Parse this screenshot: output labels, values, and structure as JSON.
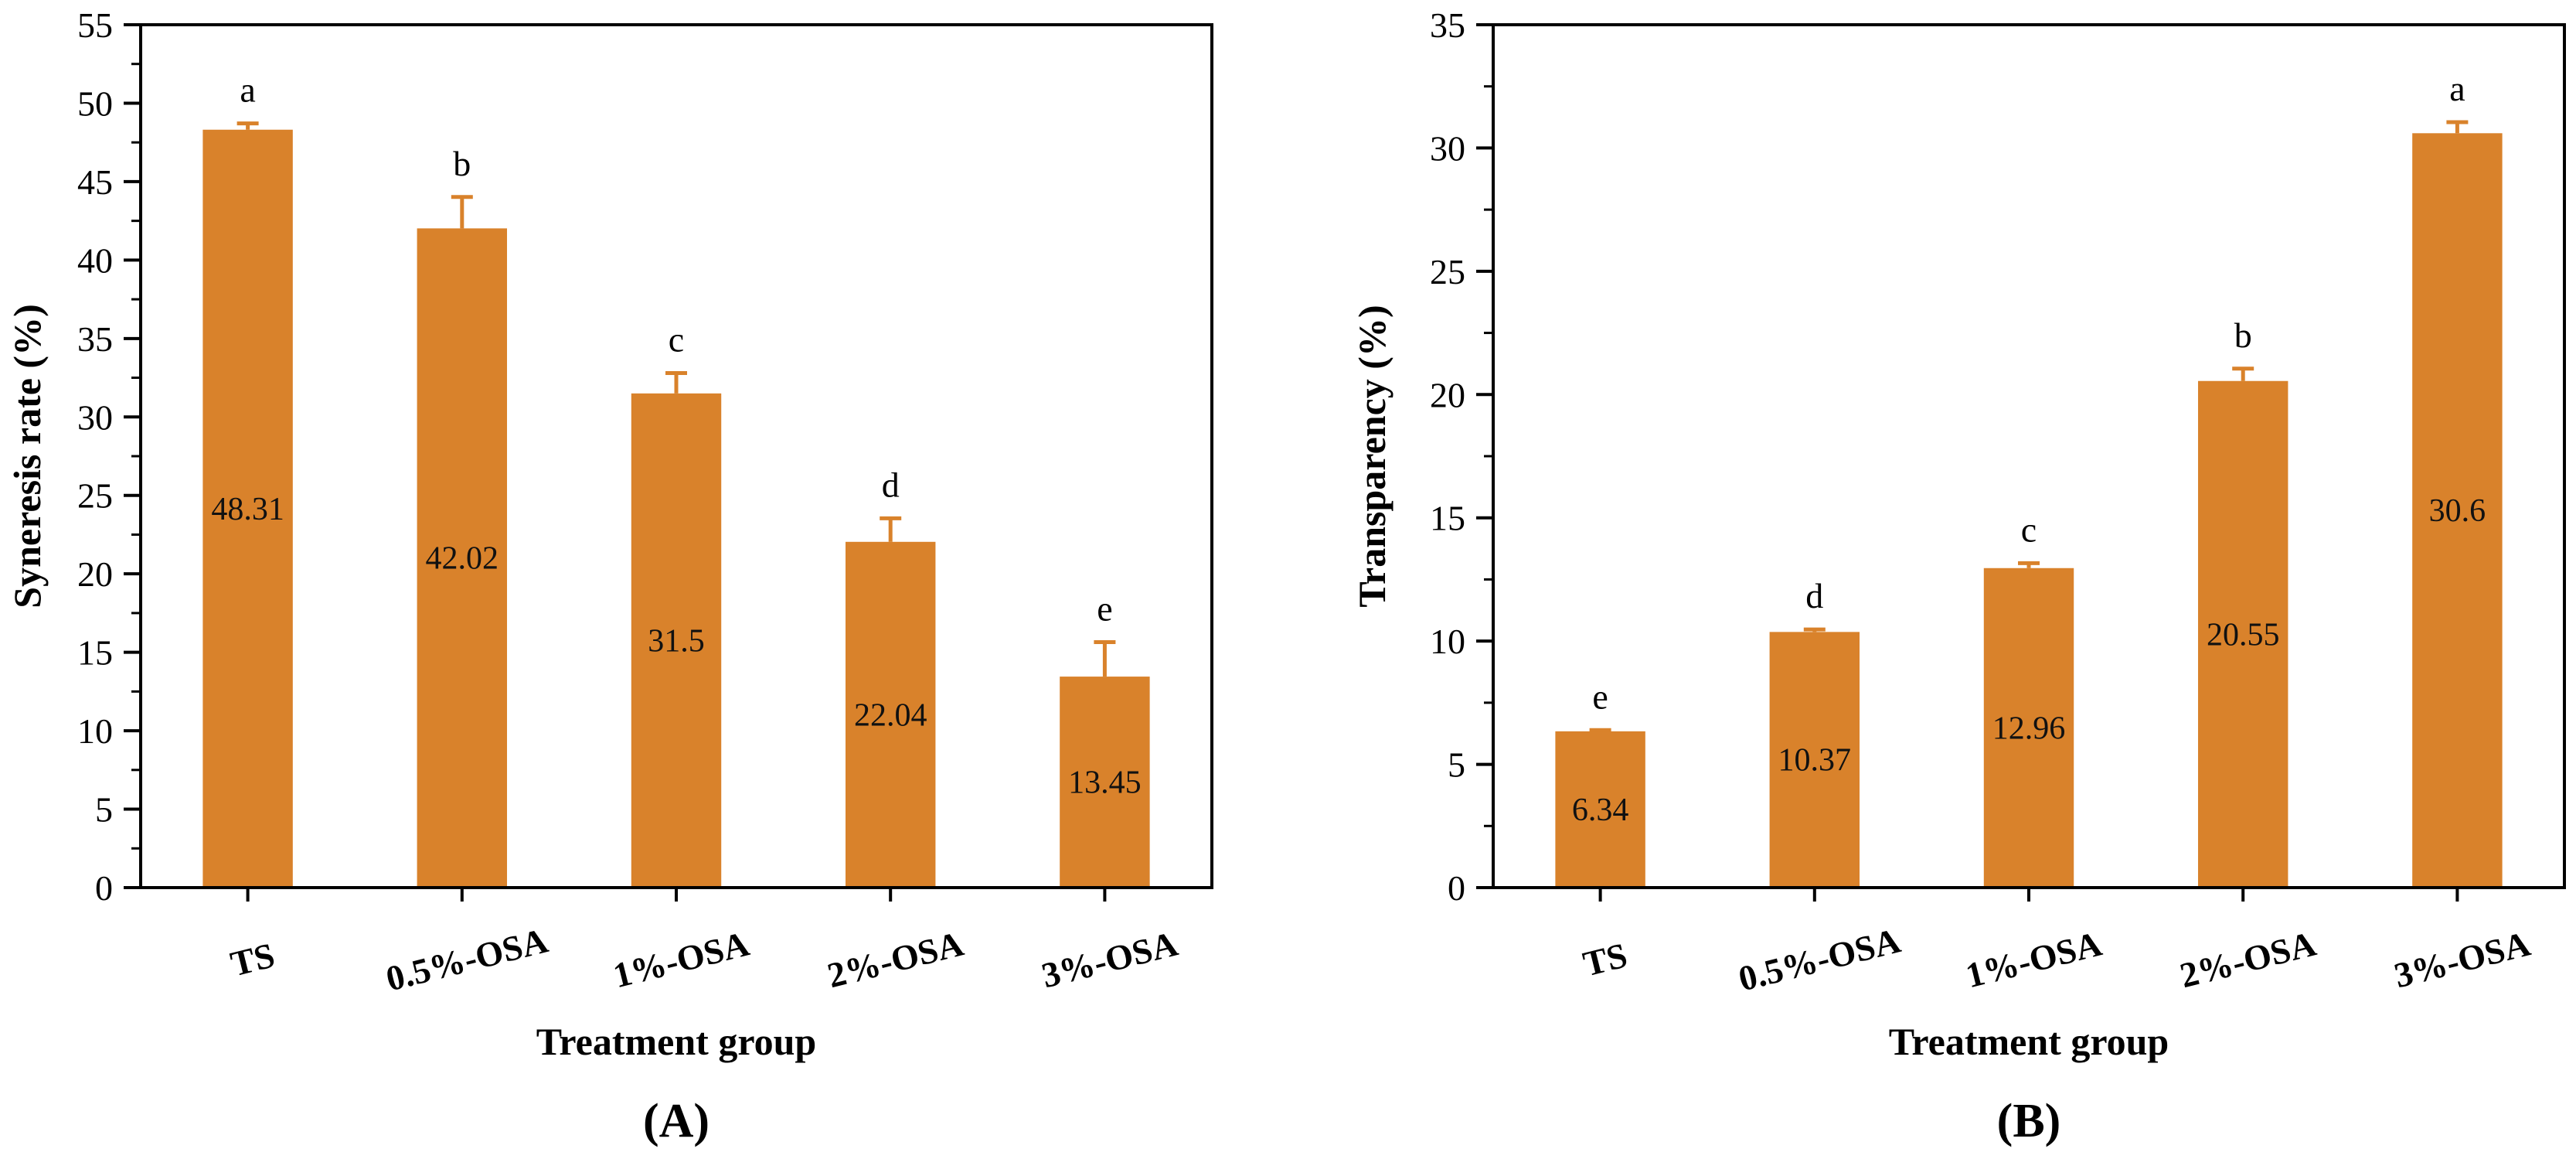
{
  "colors": {
    "bar": "#d9822b",
    "error_bar": "#d9822b",
    "axis": "#000000"
  },
  "chart_data": [
    {
      "type": "bar",
      "panel_label": "(A)",
      "xlabel": "Treatment group",
      "ylabel": "Syneresis rate (%)",
      "ylim": [
        0,
        55
      ],
      "yticks": [
        0,
        5,
        10,
        15,
        20,
        25,
        30,
        35,
        40,
        45,
        50,
        55
      ],
      "categories": [
        "TS",
        "0.5%-OSA",
        "1%-OSA",
        "2%-OSA",
        "3%-OSA"
      ],
      "values": [
        48.31,
        42.02,
        31.5,
        22.04,
        13.45
      ],
      "value_labels": [
        "48.31",
        "42.02",
        "31.5",
        "22.04",
        "13.45"
      ],
      "errors": [
        0.4,
        2.0,
        1.3,
        1.5,
        2.2
      ],
      "significance": [
        "a",
        "b",
        "c",
        "d",
        "e"
      ]
    },
    {
      "type": "bar",
      "panel_label": "(B)",
      "xlabel": "Treatment group",
      "ylabel": "Transparency (%)",
      "ylim": [
        0,
        35
      ],
      "yticks": [
        0,
        5,
        10,
        15,
        20,
        25,
        30,
        35
      ],
      "categories": [
        "TS",
        "0.5%-OSA",
        "1%-OSA",
        "2%-OSA",
        "3%-OSA"
      ],
      "values": [
        6.34,
        10.37,
        12.96,
        20.55,
        30.6
      ],
      "value_labels": [
        "6.34",
        "10.37",
        "12.96",
        "20.55",
        "30.6"
      ],
      "errors": [
        0.05,
        0.1,
        0.2,
        0.5,
        0.45
      ],
      "significance": [
        "e",
        "d",
        "c",
        "b",
        "a"
      ]
    }
  ]
}
